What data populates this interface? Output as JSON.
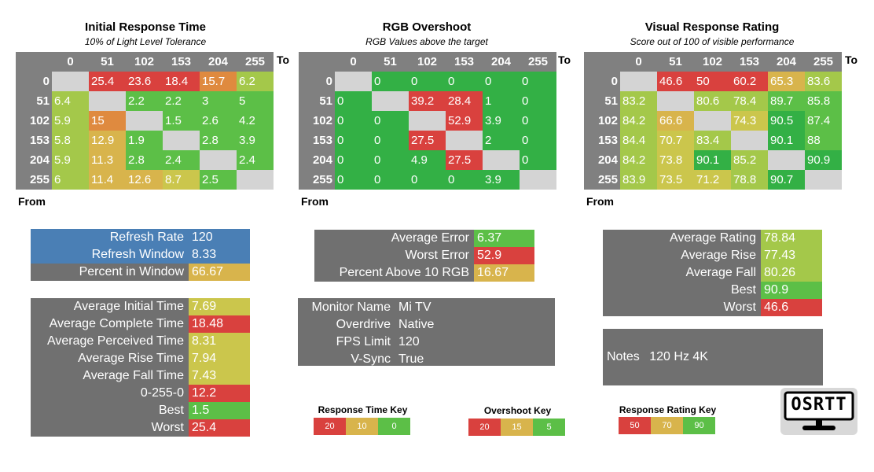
{
  "colors": {
    "red": "#d9413e",
    "orange": "#df8a3f",
    "gold": "#d8b44c",
    "yellow": "#cbc64c",
    "lime": "#a4c84a",
    "green": "#5cbf47",
    "green2": "#33b045",
    "gray_header": "#808080",
    "gray_panel": "#707070",
    "blue": "#4a7fb5",
    "diag": "#d4d4d4"
  },
  "heatmaps": [
    {
      "title": "Initial Response Time",
      "subtitle": "10% of Light Level Tolerance",
      "to_label": "To",
      "from_label": "From",
      "columns": [
        "0",
        "51",
        "102",
        "153",
        "204",
        "255"
      ],
      "rows": [
        {
          "label": "0",
          "cells": [
            null,
            "25.4",
            "23.6",
            "18.4",
            "15.7",
            "6.2"
          ],
          "colors": [
            null,
            "red",
            "red",
            "red",
            "orange",
            "lime"
          ]
        },
        {
          "label": "51",
          "cells": [
            "6.4",
            null,
            "2.2",
            "2.2",
            "3",
            "5"
          ],
          "colors": [
            "lime",
            null,
            "green",
            "green",
            "green",
            "green"
          ]
        },
        {
          "label": "102",
          "cells": [
            "5.9",
            "15",
            null,
            "1.5",
            "2.6",
            "4.2"
          ],
          "colors": [
            "lime",
            "orange",
            null,
            "green",
            "green",
            "green"
          ]
        },
        {
          "label": "153",
          "cells": [
            "5.8",
            "12.9",
            "1.9",
            null,
            "2.8",
            "3.9"
          ],
          "colors": [
            "lime",
            "gold",
            "green",
            null,
            "green",
            "green"
          ]
        },
        {
          "label": "204",
          "cells": [
            "5.9",
            "11.3",
            "2.8",
            "2.4",
            null,
            "2.4"
          ],
          "colors": [
            "lime",
            "gold",
            "green",
            "green",
            null,
            "green"
          ]
        },
        {
          "label": "255",
          "cells": [
            "6",
            "11.4",
            "12.6",
            "8.7",
            "2.5",
            null
          ],
          "colors": [
            "lime",
            "gold",
            "gold",
            "yellow",
            "green",
            null
          ]
        }
      ]
    },
    {
      "title": "RGB Overshoot",
      "subtitle": "RGB Values above the target",
      "to_label": "To",
      "from_label": "From",
      "columns": [
        "0",
        "51",
        "102",
        "153",
        "204",
        "255"
      ],
      "rows": [
        {
          "label": "0",
          "cells": [
            null,
            "0",
            "0",
            "0",
            "0",
            "0"
          ],
          "colors": [
            null,
            "green2",
            "green2",
            "green2",
            "green2",
            "green2"
          ]
        },
        {
          "label": "51",
          "cells": [
            "0",
            null,
            "39.2",
            "28.4",
            "1",
            "0"
          ],
          "colors": [
            "green2",
            null,
            "red",
            "red",
            "green2",
            "green2"
          ]
        },
        {
          "label": "102",
          "cells": [
            "0",
            "0",
            null,
            "52.9",
            "3.9",
            "0"
          ],
          "colors": [
            "green2",
            "green2",
            null,
            "red",
            "green2",
            "green2"
          ]
        },
        {
          "label": "153",
          "cells": [
            "0",
            "0",
            "27.5",
            null,
            "2",
            "0"
          ],
          "colors": [
            "green2",
            "green2",
            "red",
            null,
            "green2",
            "green2"
          ]
        },
        {
          "label": "204",
          "cells": [
            "0",
            "0",
            "4.9",
            "27.5",
            null,
            "0"
          ],
          "colors": [
            "green2",
            "green2",
            "green2",
            "red",
            null,
            "green2"
          ]
        },
        {
          "label": "255",
          "cells": [
            "0",
            "0",
            "0",
            "0",
            "3.9",
            null
          ],
          "colors": [
            "green2",
            "green2",
            "green2",
            "green2",
            "green2",
            null
          ]
        }
      ]
    },
    {
      "title": "Visual Response Rating",
      "subtitle": "Score out of 100 of visible performance",
      "to_label": "To",
      "from_label": "From",
      "columns": [
        "0",
        "51",
        "102",
        "153",
        "204",
        "255"
      ],
      "rows": [
        {
          "label": "0",
          "cells": [
            null,
            "46.6",
            "50",
            "60.2",
            "65.3",
            "83.6"
          ],
          "colors": [
            null,
            "red",
            "red",
            "red",
            "gold",
            "lime"
          ]
        },
        {
          "label": "51",
          "cells": [
            "83.2",
            null,
            "80.6",
            "78.4",
            "89.7",
            "85.8"
          ],
          "colors": [
            "lime",
            null,
            "lime",
            "lime",
            "green",
            "green"
          ]
        },
        {
          "label": "102",
          "cells": [
            "84.2",
            "66.6",
            null,
            "74.3",
            "90.5",
            "87.4"
          ],
          "colors": [
            "lime",
            "gold",
            null,
            "yellow",
            "green2",
            "green"
          ]
        },
        {
          "label": "153",
          "cells": [
            "84.4",
            "70.7",
            "83.4",
            null,
            "90.1",
            "88"
          ],
          "colors": [
            "lime",
            "yellow",
            "lime",
            null,
            "green2",
            "green"
          ]
        },
        {
          "label": "204",
          "cells": [
            "84.2",
            "73.8",
            "90.1",
            "85.2",
            null,
            "90.9"
          ],
          "colors": [
            "lime",
            "yellow",
            "green2",
            "lime",
            null,
            "green2"
          ]
        },
        {
          "label": "255",
          "cells": [
            "83.9",
            "73.5",
            "71.2",
            "78.8",
            "90.7",
            null
          ],
          "colors": [
            "lime",
            "yellow",
            "yellow",
            "lime",
            "green2",
            null
          ]
        }
      ]
    }
  ],
  "refresh_panel": [
    {
      "label": "Refresh Rate",
      "value": "120",
      "label_color": "blue",
      "value_color": "blue"
    },
    {
      "label": "Refresh Window",
      "value": "8.33",
      "label_color": "blue",
      "value_color": "blue"
    },
    {
      "label": "Percent in Window",
      "value": "66.67",
      "label_color": "gray_panel",
      "value_color": "gold"
    }
  ],
  "time_panel": [
    {
      "label": "Average Initial Time",
      "value": "7.69",
      "value_color": "yellow"
    },
    {
      "label": "Average Complete Time",
      "value": "18.48",
      "value_color": "red"
    },
    {
      "label": "Average Perceived Time",
      "value": "8.31",
      "value_color": "yellow"
    },
    {
      "label": "Average Rise Time",
      "value": "7.94",
      "value_color": "yellow"
    },
    {
      "label": "Average Fall Time",
      "value": "7.43",
      "value_color": "yellow"
    },
    {
      "label": "0-255-0",
      "value": "12.2",
      "value_color": "red"
    },
    {
      "label": "Best",
      "value": "1.5",
      "value_color": "green"
    },
    {
      "label": "Worst",
      "value": "25.4",
      "value_color": "red"
    }
  ],
  "error_panel": [
    {
      "label": "Average Error",
      "value": "6.37",
      "value_color": "green"
    },
    {
      "label": "Worst Error",
      "value": "52.9",
      "value_color": "red"
    },
    {
      "label": "Percent Above 10 RGB",
      "value": "16.67",
      "value_color": "gold"
    }
  ],
  "monitor_panel": [
    {
      "label": "Monitor Name",
      "value": "Mi TV"
    },
    {
      "label": "Overdrive",
      "value": "Native"
    },
    {
      "label": "FPS Limit",
      "value": "120"
    },
    {
      "label": "V-Sync",
      "value": "True"
    }
  ],
  "rating_panel": [
    {
      "label": "Average Rating",
      "value": "78.84",
      "value_color": "lime"
    },
    {
      "label": "Average Rise",
      "value": "77.43",
      "value_color": "lime"
    },
    {
      "label": "Average Fall",
      "value": "80.26",
      "value_color": "lime"
    },
    {
      "label": "Best",
      "value": "90.9",
      "value_color": "green"
    },
    {
      "label": "Worst",
      "value": "46.6",
      "value_color": "red"
    }
  ],
  "notes": {
    "label": "Notes",
    "value": "120 Hz 4K"
  },
  "keys": [
    {
      "title": "Response Time Key",
      "values": [
        "20",
        "10",
        "0"
      ],
      "colors": [
        "red",
        "gold",
        "green"
      ]
    },
    {
      "title": "Overshoot Key",
      "values": [
        "20",
        "15",
        "5"
      ],
      "colors": [
        "red",
        "gold",
        "green"
      ]
    },
    {
      "title": "Response Rating Key",
      "values": [
        "50",
        "70",
        "90"
      ],
      "colors": [
        "red",
        "gold",
        "green"
      ]
    }
  ],
  "logo": {
    "text": "OSRTT"
  }
}
